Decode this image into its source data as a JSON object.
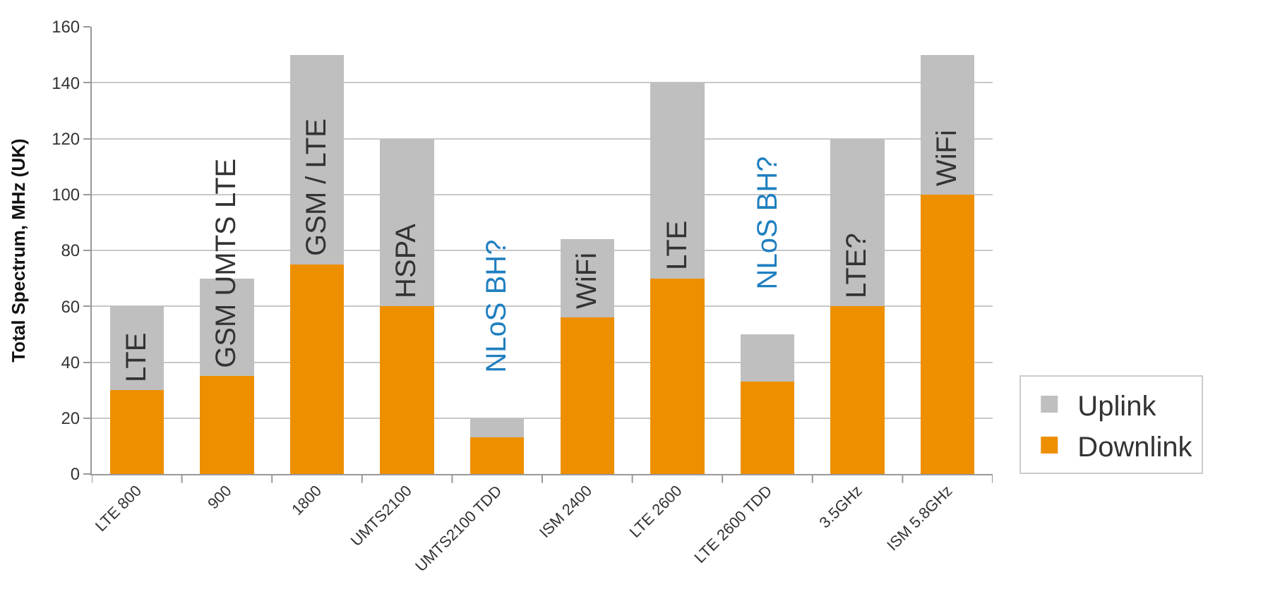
{
  "chart_data": {
    "type": "bar",
    "stacked": true,
    "ylabel": "Total Spectrum, MHz (UK)",
    "categories": [
      "LTE 800",
      "900",
      "1800",
      "UMTS2100",
      "UMTS2100 TDD",
      "ISM 2400",
      "LTE 2600",
      "LTE 2600 TDD",
      "3.5GHz",
      "ISM 5.8GHz"
    ],
    "series": [
      {
        "name": "Downlink",
        "color": "#ee8f00",
        "values": [
          30,
          35,
          75,
          60,
          13,
          56,
          70,
          33,
          60,
          100
        ]
      },
      {
        "name": "Uplink",
        "color": "#bfbfbf",
        "values": [
          30,
          35,
          75,
          60,
          7,
          28,
          70,
          17,
          60,
          50
        ]
      }
    ],
    "ylim": [
      0,
      160
    ],
    "yticks": [
      0,
      20,
      40,
      60,
      80,
      100,
      120,
      140,
      160
    ],
    "grid": "y",
    "legend": "bottom right",
    "annotations": [
      "LTE",
      "GSM UMTS LTE",
      "GSM / LTE",
      "HSPA",
      "NLoS BH?",
      "WiFi",
      "LTE",
      "NLoS BH?",
      "LTE?",
      "WiFi"
    ]
  }
}
